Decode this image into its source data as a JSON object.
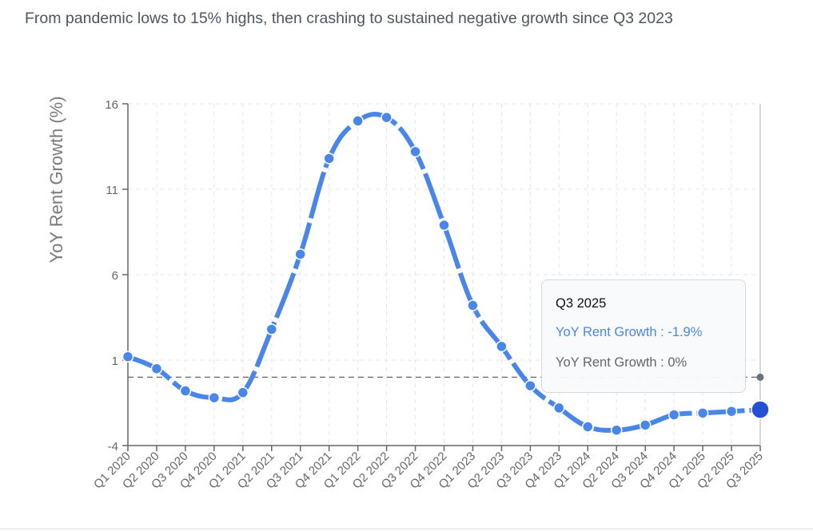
{
  "subtitle": "From pandemic lows to 15% highs, then crashing to sustained negative growth since Q3 2023",
  "colors": {
    "line": "#4a86e8",
    "active_dot": "#2450d6",
    "reference": "#666666",
    "reference_dot": "#6b7280",
    "axis": "#666666",
    "grid": "#e5e5e5"
  },
  "tooltip": {
    "title": "Q3 2025",
    "rows": [
      {
        "label": "YoY Rent Growth",
        "separator": " : ",
        "value": "-1.9%"
      },
      {
        "label": "YoY Rent Growth",
        "separator": " : ",
        "value": "0%"
      }
    ]
  },
  "chart_data": {
    "type": "line",
    "title": "",
    "subtitle": "From pandemic lows to 15% highs, then crashing to sustained negative growth since Q3 2023",
    "xlabel": "",
    "ylabel": "YoY Rent Growth (%)",
    "ylim": [
      -4,
      16
    ],
    "yticks": [
      -4,
      1,
      6,
      11,
      16
    ],
    "grid": true,
    "categories": [
      "Q1 2020",
      "Q2 2020",
      "Q3 2020",
      "Q4 2020",
      "Q1 2021",
      "Q2 2021",
      "Q3 2021",
      "Q4 2021",
      "Q1 2022",
      "Q2 2022",
      "Q3 2022",
      "Q4 2022",
      "Q1 2023",
      "Q2 2023",
      "Q3 2023",
      "Q4 2023",
      "Q1 2024",
      "Q2 2024",
      "Q3 2024",
      "Q4 2024",
      "Q1 2025",
      "Q2 2025",
      "Q3 2025"
    ],
    "series": [
      {
        "name": "YoY Rent Growth",
        "style": "solid-dashed-thick",
        "values": [
          1.2,
          0.5,
          -0.8,
          -1.2,
          -0.9,
          2.8,
          7.2,
          12.8,
          15.0,
          15.2,
          13.2,
          8.9,
          4.2,
          1.8,
          -0.5,
          -1.8,
          -2.9,
          -3.1,
          -2.8,
          -2.2,
          -2.1,
          -2.0,
          -1.9
        ]
      },
      {
        "name": "YoY Rent Growth",
        "style": "reference-dashed",
        "values": [
          0,
          0,
          0,
          0,
          0,
          0,
          0,
          0,
          0,
          0,
          0,
          0,
          0,
          0,
          0,
          0,
          0,
          0,
          0,
          0,
          0,
          0,
          0
        ]
      }
    ],
    "active_index": 22,
    "legend": "none"
  }
}
